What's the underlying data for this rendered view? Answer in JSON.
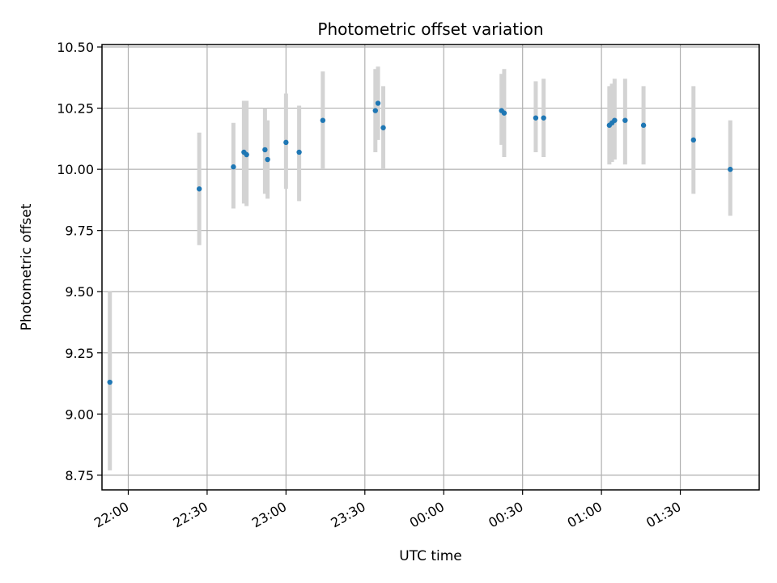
{
  "chart_data": {
    "type": "scatter",
    "title": "Photometric offset variation",
    "xlabel": "UTC time",
    "ylabel": "Photometric offset",
    "ylim": [
      8.69,
      10.51
    ],
    "xlim": [
      "21:50",
      "02:00"
    ],
    "grid": true,
    "x_tick_labels": [
      "22:00",
      "22:30",
      "23:00",
      "23:30",
      "00:00",
      "00:30",
      "01:00",
      "01:30"
    ],
    "y_tick_labels": [
      "8.75",
      "9.00",
      "9.25",
      "9.50",
      "9.75",
      "10.00",
      "10.25",
      "10.50"
    ],
    "x_ticks": [
      "22:00",
      "22:30",
      "23:00",
      "23:30",
      "00:00",
      "00:30",
      "01:00",
      "01:30"
    ],
    "y_ticks": [
      8.75,
      9.0,
      9.25,
      9.5,
      9.75,
      10.0,
      10.25,
      10.5
    ],
    "colors": {
      "point": "#1f77b4",
      "errorbar": "#d3d3d3",
      "grid": "#b0b0b0"
    },
    "points": [
      {
        "x": "21:53",
        "y": 9.13,
        "lo": 8.77,
        "hi": 9.5
      },
      {
        "x": "22:27",
        "y": 9.92,
        "lo": 9.69,
        "hi": 10.15
      },
      {
        "x": "22:40",
        "y": 10.01,
        "lo": 9.84,
        "hi": 10.19
      },
      {
        "x": "22:44",
        "y": 10.07,
        "lo": 9.86,
        "hi": 10.28
      },
      {
        "x": "22:45",
        "y": 10.06,
        "lo": 9.85,
        "hi": 10.28
      },
      {
        "x": "22:52",
        "y": 10.08,
        "lo": 9.9,
        "hi": 10.25
      },
      {
        "x": "22:53",
        "y": 10.04,
        "lo": 9.88,
        "hi": 10.2
      },
      {
        "x": "23:00",
        "y": 10.11,
        "lo": 9.92,
        "hi": 10.31
      },
      {
        "x": "23:05",
        "y": 10.07,
        "lo": 9.87,
        "hi": 10.26
      },
      {
        "x": "23:14",
        "y": 10.2,
        "lo": 10.0,
        "hi": 10.4
      },
      {
        "x": "23:34",
        "y": 10.24,
        "lo": 10.07,
        "hi": 10.41
      },
      {
        "x": "23:35",
        "y": 10.27,
        "lo": 10.12,
        "hi": 10.42
      },
      {
        "x": "23:37",
        "y": 10.17,
        "lo": 10.0,
        "hi": 10.34
      },
      {
        "x": "00:22",
        "y": 10.24,
        "lo": 10.1,
        "hi": 10.39
      },
      {
        "x": "00:23",
        "y": 10.23,
        "lo": 10.05,
        "hi": 10.41
      },
      {
        "x": "00:35",
        "y": 10.21,
        "lo": 10.07,
        "hi": 10.36
      },
      {
        "x": "00:38",
        "y": 10.21,
        "lo": 10.05,
        "hi": 10.37
      },
      {
        "x": "01:03",
        "y": 10.18,
        "lo": 10.02,
        "hi": 10.34
      },
      {
        "x": "01:04",
        "y": 10.19,
        "lo": 10.03,
        "hi": 10.35
      },
      {
        "x": "01:05",
        "y": 10.2,
        "lo": 10.04,
        "hi": 10.37
      },
      {
        "x": "01:09",
        "y": 10.2,
        "lo": 10.02,
        "hi": 10.37
      },
      {
        "x": "01:16",
        "y": 10.18,
        "lo": 10.02,
        "hi": 10.34
      },
      {
        "x": "01:35",
        "y": 10.12,
        "lo": 9.9,
        "hi": 10.34
      },
      {
        "x": "01:49",
        "y": 10.0,
        "lo": 9.81,
        "hi": 10.2
      }
    ]
  }
}
